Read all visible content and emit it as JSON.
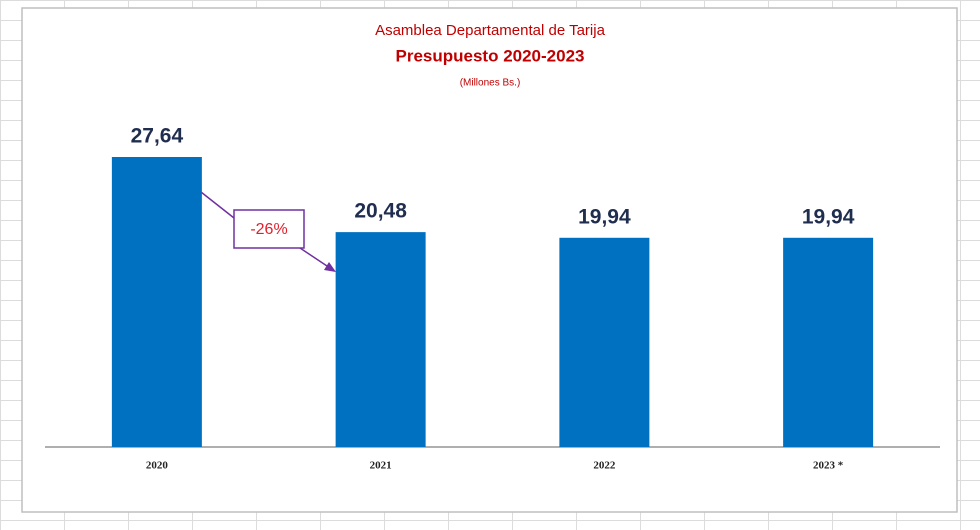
{
  "chart_data": {
    "type": "bar",
    "title": "Asamblea Departamental de Tarija",
    "subtitle": "Presupuesto 2020-2023",
    "note": "(Millones Bs.)",
    "categories": [
      "2020",
      "2021",
      "2022",
      "2023 *"
    ],
    "values": [
      27.64,
      20.48,
      19.94,
      19.94
    ],
    "value_labels": [
      "27,64",
      "20,48",
      "19,94",
      "19,94"
    ],
    "color": "#0070c0",
    "annotation": "-26%"
  }
}
